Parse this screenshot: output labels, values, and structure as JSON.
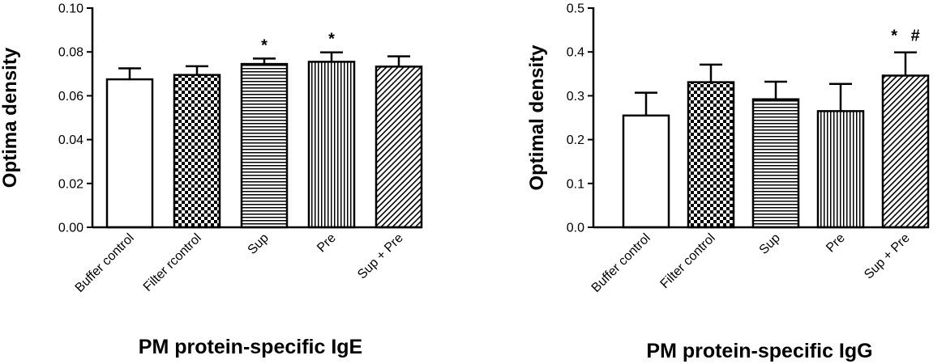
{
  "chart_data": [
    {
      "type": "bar",
      "title": "",
      "xlabel": "PM protein-specific IgE",
      "ylabel": "Optima density",
      "ylim": [
        0,
        0.1
      ],
      "yticks": [
        "0.00",
        "0.02",
        "0.04",
        "0.06",
        "0.08",
        "0.10"
      ],
      "categories": [
        "Buffer control",
        "Filter rcontrol",
        "Sup",
        "Pre",
        "Sup + Pre"
      ],
      "values": [
        0.0675,
        0.0695,
        0.0745,
        0.0755,
        0.0733
      ],
      "errors": [
        0.005,
        0.004,
        0.0025,
        0.0043,
        0.0047
      ],
      "patterns": [
        "none",
        "checker",
        "hlines",
        "vlines",
        "diag"
      ],
      "annotations": [
        "",
        "",
        "*",
        "*",
        ""
      ],
      "grid": false
    },
    {
      "type": "bar",
      "title": "",
      "xlabel": "PM protein-specific IgG",
      "ylabel": "Optimal density",
      "ylim": [
        0,
        0.5
      ],
      "yticks": [
        "0.0",
        "0.1",
        "0.2",
        "0.3",
        "0.4",
        "0.5"
      ],
      "categories": [
        "Buffer control",
        "Filter control",
        "Sup",
        "Pre",
        "Sup + Pre"
      ],
      "values": [
        0.255,
        0.331,
        0.292,
        0.265,
        0.346
      ],
      "errors": [
        0.052,
        0.04,
        0.04,
        0.062,
        0.053
      ],
      "patterns": [
        "none",
        "checker",
        "hlines",
        "vlines",
        "diag"
      ],
      "annotations": [
        "",
        "",
        "",
        "",
        "*   #"
      ],
      "grid": false
    }
  ]
}
